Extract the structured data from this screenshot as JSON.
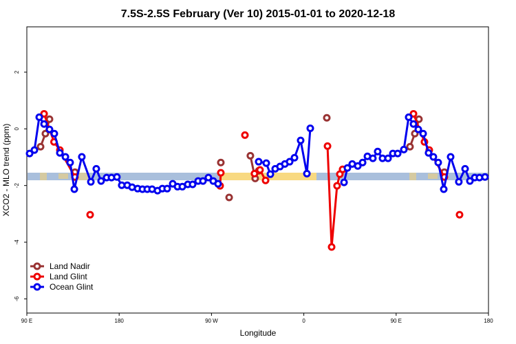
{
  "chart_data": {
    "type": "line",
    "title": "7.5S-2.5S February (Ver 10)   2015-01-01 to 2020-12-18",
    "x_label": "Longitude",
    "y_label": "XCO2 - MLO trend (ppm)",
    "xlim": [
      90,
      540
    ],
    "ylim": [
      -6.5,
      3.6
    ],
    "xticks": [
      {
        "value": 90,
        "label": "90 E"
      },
      180,
      {
        "value": 270,
        "label": "90 W"
      },
      {
        "value": 360,
        "label": "0"
      },
      {
        "value": 450,
        "label": "90 E"
      },
      {
        "value": 540,
        "label": "180"
      }
    ],
    "yticks": [
      -6,
      -4,
      -2,
      0,
      2
    ],
    "legend": "bottom-left",
    "series": [
      {
        "name": "Land Nadir",
        "color": "#993333",
        "x": [
          103.4,
          108.1,
          112.1,
          null,
          136.9,
          null,
          279.1,
          null,
          287.2,
          null,
          307.9,
          312.6,
          316.0,
          null,
          382.4,
          null,
          463.5,
          468.2,
          472.2,
          null,
          497.0
        ],
        "values": [
          -0.63,
          -0.17,
          0.34,
          null,
          -1.53,
          null,
          -1.19,
          null,
          -2.42,
          null,
          -0.95,
          -1.75,
          -1.48,
          null,
          0.39,
          null,
          -0.63,
          -0.17,
          0.34,
          null,
          -1.53
        ]
      },
      {
        "name": "Land Glint",
        "color": "#ee0000",
        "x": [
          106.8,
          116.5,
          122.2,
          136.9,
          null,
          151.7,
          null,
          278.4,
          279.1,
          null,
          302.6,
          null,
          311.9,
          317.3,
          322.7,
          null,
          383.1,
          387.1,
          392.4,
          395.1,
          397.8,
          null,
          466.9,
          477.6,
          482.3,
          497.0,
          null,
          511.8
        ],
        "values": [
          0.53,
          -0.46,
          -0.75,
          -1.7,
          null,
          -3.03,
          null,
          -2.01,
          -1.55,
          null,
          -0.22,
          null,
          -1.58,
          -1.45,
          -1.82,
          null,
          -0.61,
          -4.17,
          -2.01,
          -1.6,
          -1.43,
          null,
          0.53,
          -0.46,
          -0.75,
          -1.7,
          null,
          -3.03
        ]
      },
      {
        "name": "Ocean Glint",
        "color": "#0000ee",
        "x": [
          92.7,
          97.4,
          102.1,
          106.8,
          112.1,
          116.8,
          122.2,
          127.6,
          132.2,
          136.3,
          143.6,
          152.4,
          157.7,
          162.4,
          167.8,
          172.5,
          177.8,
          182.5,
          187.9,
          192.6,
          198.0,
          202.7,
          207.4,
          212.1,
          217.4,
          222.1,
          226.8,
          232.2,
          236.9,
          241.6,
          246.9,
          251.6,
          257.0,
          261.7,
          267.0,
          271.7,
          276.4,
          null,
          316.0,
          323.4,
          327.4,
          332.1,
          336.8,
          341.5,
          346.2,
          350.9,
          356.9,
          363.0,
          366.3,
          null,
          399.2,
          402.5,
          407.2,
          412.6,
          417.3,
          422.0,
          427.3,
          432.0,
          436.7,
          442.1,
          446.8,
          451.5,
          457.5,
          462.2,
          466.9,
          471.6,
          476.3,
          481.6,
          486.3,
          491.0,
          496.4,
          503.1,
          511.1,
          517.2,
          521.9,
          526.6,
          531.2,
          536.6
        ],
        "values": [
          -0.87,
          -0.75,
          0.41,
          0.17,
          -0.02,
          -0.17,
          -0.85,
          -0.99,
          -1.19,
          -2.13,
          -0.99,
          -1.87,
          -1.41,
          -1.84,
          -1.72,
          -1.72,
          -1.7,
          -1.99,
          -1.99,
          -2.06,
          -2.11,
          -2.13,
          -2.13,
          -2.13,
          -2.18,
          -2.11,
          -2.11,
          -1.94,
          -2.04,
          -2.04,
          -1.96,
          -1.96,
          -1.84,
          -1.84,
          -1.72,
          -1.84,
          -1.94,
          null,
          -1.16,
          -1.21,
          -1.6,
          -1.41,
          -1.33,
          -1.24,
          -1.16,
          -1.02,
          -0.41,
          -1.58,
          0.02,
          null,
          -1.89,
          -1.38,
          -1.24,
          -1.31,
          -1.19,
          -0.97,
          -1.04,
          -0.8,
          -1.04,
          -1.04,
          -0.87,
          -0.87,
          -0.73,
          0.41,
          0.17,
          -0.02,
          -0.17,
          -0.85,
          -0.99,
          -1.19,
          -2.13,
          -0.99,
          -1.87,
          -1.41,
          -1.84,
          -1.72,
          -1.72,
          -1.7
        ]
      }
    ]
  }
}
